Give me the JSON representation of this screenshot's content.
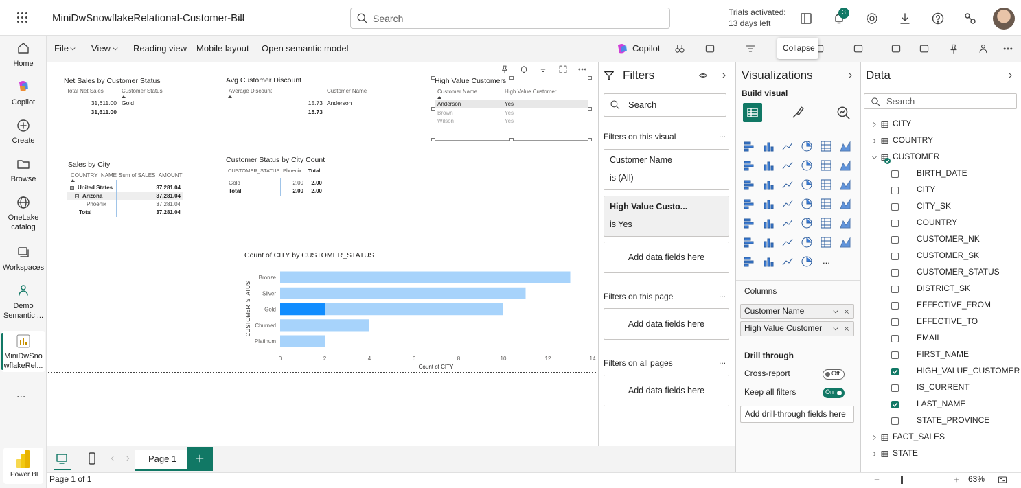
{
  "topbar": {
    "app_title": "MiniDwSnowflakeRelational-Customer-Bill",
    "search_placeholder": "Search",
    "trial_line1": "Trials activated:",
    "trial_line2": "13 days left",
    "notification_count": "3"
  },
  "nav": {
    "items": [
      "Home",
      "Copilot",
      "Create",
      "Browse",
      "OneLake catalog",
      "Workspaces",
      "Demo Semantic ...",
      "MiniDwSnowflakeRel..."
    ],
    "more": "...",
    "product": "Power BI"
  },
  "menu": {
    "items": [
      "File",
      "View",
      "Reading view",
      "Mobile layout",
      "Open semantic model"
    ],
    "copilot": "Copilot",
    "tooltip": "Collapse"
  },
  "visuals": {
    "net_sales": {
      "title": "Net Sales by Customer Status",
      "headers": [
        "Total Net Sales",
        "Customer Status"
      ],
      "rows": [
        [
          "31,611.00",
          "Gold"
        ]
      ],
      "total": [
        "31,611.00"
      ]
    },
    "avg_discount": {
      "title": "Avg Customer Discount",
      "headers": [
        "Average Discount",
        "Customer Name"
      ],
      "rows": [
        [
          "15.73",
          "Anderson"
        ]
      ],
      "total": [
        "15.73"
      ]
    },
    "high_value": {
      "title": "High Value Customers",
      "headers": [
        "Customer Name",
        "High Value Customer"
      ],
      "rows": [
        [
          "Anderson",
          "Yes"
        ],
        [
          "Brown",
          "Yes"
        ],
        [
          "Wilson",
          "Yes"
        ]
      ]
    },
    "sales_by_city": {
      "title": "Sales by City",
      "headers": [
        "COUNTRY_NAME",
        "Sum of SALES_AMOUNT"
      ],
      "rows": [
        [
          "United States",
          "37,281.04"
        ],
        [
          "Arizona",
          "37,281.04"
        ],
        [
          "Phoenix",
          "37,281.04"
        ],
        [
          "Total",
          "37,281.04"
        ]
      ]
    },
    "status_by_city": {
      "title": "Customer Status by City Count",
      "headers": [
        "CUSTOMER_STATUS",
        "Phoenix",
        "Total"
      ],
      "rows": [
        [
          "Gold",
          "2.00",
          "2.00"
        ],
        [
          "Total",
          "2.00",
          "2.00"
        ]
      ]
    }
  },
  "chart": {
    "type": "bar",
    "title": "Count of CITY by CUSTOMER_STATUS",
    "x_label": "Count of CITY",
    "y_label": "CUSTOMER_STATUS",
    "categories": [
      "Bronze",
      "Silver",
      "Gold",
      "Churned",
      "Platinum"
    ],
    "values": [
      13,
      11,
      10,
      4,
      2
    ],
    "highlighted_values": [
      null,
      null,
      2,
      null,
      null
    ],
    "color": "#a7d3fb",
    "highlight_color": "#118dff",
    "xlim": [
      0,
      14
    ],
    "xticks": [
      0,
      2,
      4,
      6,
      8,
      10,
      12,
      14
    ]
  },
  "filters": {
    "title": "Filters",
    "search": "Search",
    "more": "...",
    "sections": [
      {
        "heading": "Filters on this visual",
        "cards": [
          {
            "field": "Customer Name",
            "state": "is (All)"
          },
          {
            "field": "High Value Custo...",
            "state": "is Yes"
          }
        ],
        "add": "Add data fields here"
      },
      {
        "heading": "Filters on this page",
        "add": "Add data fields here"
      },
      {
        "heading": "Filters on all pages",
        "add": "Add data fields here"
      }
    ]
  },
  "visualizations": {
    "title": "Visualizations",
    "build_visual": "Build visual",
    "more_icon": "...",
    "columns_label": "Columns",
    "columns": [
      "Customer Name",
      "High Value Customer"
    ],
    "drill_through": "Drill through",
    "cross_report": "Cross-report",
    "cross_report_state": "Off",
    "keep_filters": "Keep all filters",
    "keep_filters_state": "On",
    "add_drill": "Add drill-through fields here"
  },
  "data_pane": {
    "title": "Data",
    "search": "Search",
    "tables": [
      {
        "name": "CITY",
        "expanded": false
      },
      {
        "name": "COUNTRY",
        "expanded": false
      },
      {
        "name": "CUSTOMER",
        "expanded": true,
        "fields": [
          {
            "name": "BIRTH_DATE",
            "checked": false
          },
          {
            "name": "CITY",
            "checked": false
          },
          {
            "name": "CITY_SK",
            "checked": false
          },
          {
            "name": "COUNTRY",
            "checked": false
          },
          {
            "name": "CUSTOMER_NK",
            "checked": false
          },
          {
            "name": "CUSTOMER_SK",
            "checked": false
          },
          {
            "name": "CUSTOMER_STATUS",
            "checked": false
          },
          {
            "name": "DISTRICT_SK",
            "checked": false
          },
          {
            "name": "EFFECTIVE_FROM",
            "checked": false
          },
          {
            "name": "EFFECTIVE_TO",
            "checked": false
          },
          {
            "name": "EMAIL",
            "checked": false
          },
          {
            "name": "FIRST_NAME",
            "checked": false
          },
          {
            "name": "HIGH_VALUE_CUSTOMER",
            "checked": true
          },
          {
            "name": "IS_CURRENT",
            "checked": false
          },
          {
            "name": "LAST_NAME",
            "checked": true
          },
          {
            "name": "STATE_PROVINCE",
            "checked": false
          }
        ]
      },
      {
        "name": "FACT_SALES",
        "expanded": false
      },
      {
        "name": "STATE",
        "expanded": false
      }
    ]
  },
  "footer": {
    "page_tab": "Page 1",
    "page_count": "Page 1 of 1",
    "zoom": "63%"
  }
}
